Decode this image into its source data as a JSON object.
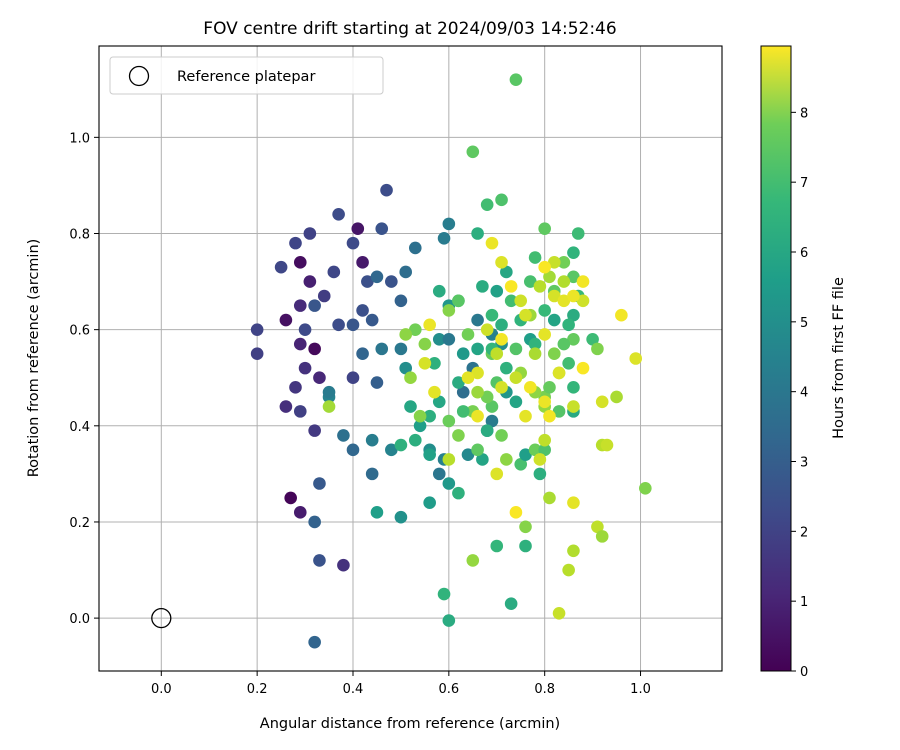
{
  "chart_data": {
    "type": "scatter",
    "title": "FOV centre drift starting at 2024/09/03 14:52:46",
    "xlabel": "Angular distance from reference (arcmin)",
    "ylabel": "Rotation from reference (arcmin)",
    "xlim": [
      -0.13,
      1.17
    ],
    "ylim": [
      -0.11,
      1.19
    ],
    "xticks": [
      "0.0",
      "0.2",
      "0.4",
      "0.6",
      "0.8",
      "1.0"
    ],
    "xtick_values": [
      0.0,
      0.2,
      0.4,
      0.6,
      0.8,
      1.0
    ],
    "yticks": [
      "0.0",
      "0.2",
      "0.4",
      "0.6",
      "0.8",
      "1.0"
    ],
    "ytick_values": [
      0.0,
      0.2,
      0.4,
      0.6,
      0.8,
      1.0
    ],
    "grid": true,
    "legend": {
      "position": "top-left",
      "label": "Reference platepar",
      "reference_point": [
        0.0,
        0.0
      ]
    },
    "colorbar": {
      "label": "Hours from first FF file",
      "range": [
        0,
        8.95
      ],
      "ticks": [
        "0",
        "1",
        "2",
        "3",
        "4",
        "5",
        "6",
        "7",
        "8"
      ],
      "tick_values": [
        0,
        1,
        2,
        3,
        4,
        5,
        6,
        7,
        8
      ],
      "colormap": "viridis"
    },
    "points": [
      [
        0.27,
        0.25,
        0.1
      ],
      [
        0.32,
        0.56,
        0.2
      ],
      [
        0.29,
        0.74,
        0.3
      ],
      [
        0.26,
        0.62,
        0.4
      ],
      [
        0.41,
        0.81,
        0.5
      ],
      [
        0.42,
        0.74,
        0.6
      ],
      [
        0.29,
        0.22,
        0.7
      ],
      [
        0.31,
        0.7,
        0.8
      ],
      [
        0.29,
        0.57,
        0.9
      ],
      [
        0.33,
        0.5,
        1.0
      ],
      [
        0.29,
        0.65,
        1.1
      ],
      [
        0.26,
        0.44,
        1.2
      ],
      [
        0.3,
        0.52,
        1.3
      ],
      [
        0.28,
        0.48,
        1.4
      ],
      [
        0.32,
        0.39,
        1.5
      ],
      [
        0.34,
        0.67,
        1.6
      ],
      [
        0.29,
        0.43,
        1.7
      ],
      [
        0.31,
        0.8,
        1.75
      ],
      [
        0.28,
        0.78,
        1.85
      ],
      [
        0.36,
        0.72,
        1.9
      ],
      [
        0.4,
        0.78,
        2.0
      ],
      [
        0.37,
        0.84,
        2.05
      ],
      [
        0.47,
        0.89,
        2.1
      ],
      [
        0.25,
        0.73,
        1.9
      ],
      [
        0.43,
        0.7,
        2.2
      ],
      [
        0.48,
        0.7,
        2.3
      ],
      [
        0.3,
        0.6,
        2.0
      ],
      [
        0.32,
        0.65,
        2.4
      ],
      [
        0.37,
        0.61,
        2.1
      ],
      [
        0.42,
        0.64,
        2.2
      ],
      [
        0.2,
        0.6,
        1.8
      ],
      [
        0.2,
        0.55,
        1.7
      ],
      [
        0.38,
        0.11,
        1.3
      ],
      [
        0.33,
        0.12,
        2.3
      ],
      [
        0.32,
        0.2,
        2.8
      ],
      [
        0.33,
        0.28,
        2.5
      ],
      [
        0.32,
        -0.05,
        2.9
      ],
      [
        0.46,
        0.81,
        2.3
      ],
      [
        0.4,
        0.5,
        1.8
      ],
      [
        0.44,
        0.62,
        2.5
      ],
      [
        0.45,
        0.71,
        3.0
      ],
      [
        0.51,
        0.72,
        3.2
      ],
      [
        0.53,
        0.77,
        3.3
      ],
      [
        0.5,
        0.66,
        2.8
      ],
      [
        0.46,
        0.56,
        3.5
      ],
      [
        0.42,
        0.55,
        2.9
      ],
      [
        0.38,
        0.38,
        3.3
      ],
      [
        0.4,
        0.35,
        3.0
      ],
      [
        0.44,
        0.3,
        3.1
      ],
      [
        0.44,
        0.37,
        3.8
      ],
      [
        0.48,
        0.35,
        4.0
      ],
      [
        0.45,
        0.49,
        2.7
      ],
      [
        0.4,
        0.61,
        2.4
      ],
      [
        0.5,
        0.56,
        3.6
      ],
      [
        0.56,
        0.35,
        4.4
      ],
      [
        0.58,
        0.3,
        3.5
      ],
      [
        0.6,
        0.28,
        4.8
      ],
      [
        0.56,
        0.24,
        4.9
      ],
      [
        0.59,
        0.33,
        3.9
      ],
      [
        0.64,
        0.34,
        4.2
      ],
      [
        0.69,
        0.41,
        3.7
      ],
      [
        0.68,
        0.39,
        4.3
      ],
      [
        0.63,
        0.47,
        3.2
      ],
      [
        0.65,
        0.52,
        3.4
      ],
      [
        0.69,
        0.59,
        3.9
      ],
      [
        0.66,
        0.62,
        3.6
      ],
      [
        0.71,
        0.57,
        4.4
      ],
      [
        0.66,
        0.56,
        5.2
      ],
      [
        0.6,
        0.82,
        3.8
      ],
      [
        0.59,
        0.79,
        3.7
      ],
      [
        0.6,
        0.65,
        4.7
      ],
      [
        0.58,
        0.68,
        5.5
      ],
      [
        0.63,
        0.55,
        4.8
      ],
      [
        0.62,
        0.49,
        5.5
      ],
      [
        0.58,
        0.58,
        4.4
      ],
      [
        0.57,
        0.53,
        5.7
      ],
      [
        0.58,
        0.45,
        5.3
      ],
      [
        0.56,
        0.42,
        5.6
      ],
      [
        0.54,
        0.4,
        5.0
      ],
      [
        0.52,
        0.44,
        5.3
      ],
      [
        0.53,
        0.37,
        5.6
      ],
      [
        0.5,
        0.36,
        5.7
      ],
      [
        0.56,
        0.34,
        5.1
      ],
      [
        0.51,
        0.52,
        4.4
      ],
      [
        0.5,
        0.21,
        4.5
      ],
      [
        0.45,
        0.22,
        5.0
      ],
      [
        0.59,
        0.05,
        5.8
      ],
      [
        0.6,
        -0.005,
        5.5
      ],
      [
        0.62,
        0.26,
        5.7
      ],
      [
        0.62,
        0.66,
        5.9
      ],
      [
        0.66,
        0.8,
        5.6
      ],
      [
        0.67,
        0.69,
        5.5
      ],
      [
        0.7,
        0.68,
        5.1
      ],
      [
        0.72,
        0.72,
        5.3
      ],
      [
        0.71,
        0.61,
        5.6
      ],
      [
        0.73,
        0.66,
        6.2
      ],
      [
        0.75,
        0.62,
        5.8
      ],
      [
        0.77,
        0.58,
        5.0
      ],
      [
        0.74,
        0.56,
        6.5
      ],
      [
        0.72,
        0.52,
        5.7
      ],
      [
        0.7,
        0.49,
        6.5
      ],
      [
        0.72,
        0.47,
        4.7
      ],
      [
        0.74,
        0.45,
        5.2
      ],
      [
        0.69,
        0.44,
        6.6
      ],
      [
        0.68,
        0.39,
        5.5
      ],
      [
        0.67,
        0.33,
        5.2
      ],
      [
        0.66,
        0.35,
        6.7
      ],
      [
        0.7,
        0.15,
        5.9
      ],
      [
        0.73,
        0.03,
        5.5
      ],
      [
        0.76,
        0.15,
        5.7
      ],
      [
        0.75,
        0.32,
        6.3
      ],
      [
        0.76,
        0.34,
        5.0
      ],
      [
        0.78,
        0.35,
        6.9
      ],
      [
        0.79,
        0.3,
        5.6
      ],
      [
        0.8,
        0.35,
        6.4
      ],
      [
        0.8,
        0.46,
        7.1
      ],
      [
        0.81,
        0.48,
        6.8
      ],
      [
        0.83,
        0.43,
        6.5
      ],
      [
        0.86,
        0.43,
        5.4
      ],
      [
        0.86,
        0.48,
        5.9
      ],
      [
        0.85,
        0.53,
        6.2
      ],
      [
        0.86,
        0.58,
        6.8
      ],
      [
        0.86,
        0.63,
        5.5
      ],
      [
        0.87,
        0.67,
        6.0
      ],
      [
        0.86,
        0.71,
        6.6
      ],
      [
        0.86,
        0.76,
        5.8
      ],
      [
        0.87,
        0.8,
        6.1
      ],
      [
        0.84,
        0.74,
        7.0
      ],
      [
        0.82,
        0.68,
        6.7
      ],
      [
        0.8,
        0.64,
        6.0
      ],
      [
        0.78,
        0.57,
        5.8
      ],
      [
        0.77,
        0.7,
        6.3
      ],
      [
        0.8,
        0.81,
        6.7
      ],
      [
        0.82,
        0.62,
        5.2
      ],
      [
        0.9,
        0.58,
        6.1
      ],
      [
        0.91,
        0.56,
        7.2
      ],
      [
        0.84,
        0.57,
        6.6
      ],
      [
        0.85,
        0.61,
        5.8
      ],
      [
        0.65,
        0.97,
        6.7
      ],
      [
        0.68,
        0.86,
        6.2
      ],
      [
        0.71,
        0.87,
        6.4
      ],
      [
        0.74,
        1.12,
        6.6
      ],
      [
        0.78,
        0.75,
        6.2
      ],
      [
        0.69,
        0.63,
        6.0
      ],
      [
        0.69,
        0.55,
        6.8
      ],
      [
        0.68,
        0.46,
        7.0
      ],
      [
        0.69,
        0.56,
        5.9
      ],
      [
        0.62,
        0.66,
        6.6
      ],
      [
        0.6,
        0.41,
        6.9
      ],
      [
        0.62,
        0.38,
        7.2
      ],
      [
        0.6,
        0.64,
        7.3
      ],
      [
        0.53,
        0.6,
        7.0
      ],
      [
        0.51,
        0.59,
        7.4
      ],
      [
        0.55,
        0.57,
        7.3
      ],
      [
        0.52,
        0.5,
        7.5
      ],
      [
        0.64,
        0.59,
        7.0
      ],
      [
        0.66,
        0.47,
        7.6
      ],
      [
        0.65,
        0.43,
        7.1
      ],
      [
        0.71,
        0.38,
        7.0
      ],
      [
        0.72,
        0.33,
        7.4
      ],
      [
        0.76,
        0.19,
        7.3
      ],
      [
        0.75,
        0.51,
        7.5
      ],
      [
        0.78,
        0.55,
        7.8
      ],
      [
        0.77,
        0.63,
        7.6
      ],
      [
        0.79,
        0.69,
        8.0
      ],
      [
        0.81,
        0.71,
        7.7
      ],
      [
        0.82,
        0.74,
        8.2
      ],
      [
        0.84,
        0.7,
        7.9
      ],
      [
        0.83,
        0.51,
        7.7
      ],
      [
        0.82,
        0.55,
        7.2
      ],
      [
        0.78,
        0.47,
        7.4
      ],
      [
        0.8,
        0.44,
        7.5
      ],
      [
        0.81,
        0.25,
        7.8
      ],
      [
        0.85,
        0.1,
        8.0
      ],
      [
        0.83,
        0.01,
        8.2
      ],
      [
        0.86,
        0.14,
        7.9
      ],
      [
        0.91,
        0.19,
        8.1
      ],
      [
        0.92,
        0.17,
        7.6
      ],
      [
        0.92,
        0.36,
        8.0
      ],
      [
        0.93,
        0.36,
        8.2
      ],
      [
        0.95,
        0.46,
        7.8
      ],
      [
        0.92,
        0.45,
        8.4
      ],
      [
        0.88,
        0.66,
        8.3
      ],
      [
        0.96,
        0.63,
        8.8
      ],
      [
        0.99,
        0.54,
        8.5
      ],
      [
        1.01,
        0.27,
        7.2
      ],
      [
        0.55,
        0.53,
        8.4
      ],
      [
        0.57,
        0.47,
        8.6
      ],
      [
        0.56,
        0.61,
        8.7
      ],
      [
        0.6,
        0.33,
        8.0
      ],
      [
        0.65,
        0.12,
        7.5
      ],
      [
        0.7,
        0.3,
        8.5
      ],
      [
        0.74,
        0.22,
        8.9
      ],
      [
        0.76,
        0.42,
        8.6
      ],
      [
        0.79,
        0.33,
        8.3
      ],
      [
        0.8,
        0.37,
        8.1
      ],
      [
        0.86,
        0.24,
        8.6
      ],
      [
        0.8,
        0.45,
        8.7
      ],
      [
        0.77,
        0.48,
        8.8
      ],
      [
        0.74,
        0.5,
        8.2
      ],
      [
        0.71,
        0.48,
        8.4
      ],
      [
        0.7,
        0.55,
        8.1
      ],
      [
        0.66,
        0.51,
        8.5
      ],
      [
        0.64,
        0.5,
        8.6
      ],
      [
        0.66,
        0.42,
        8.7
      ],
      [
        0.68,
        0.6,
        8.3
      ],
      [
        0.71,
        0.58,
        8.8
      ],
      [
        0.73,
        0.69,
        8.9
      ],
      [
        0.71,
        0.74,
        8.5
      ],
      [
        0.69,
        0.78,
        8.7
      ],
      [
        0.8,
        0.73,
        8.9
      ],
      [
        0.82,
        0.67,
        8.4
      ],
      [
        0.84,
        0.66,
        8.6
      ],
      [
        0.88,
        0.7,
        8.8
      ],
      [
        0.88,
        0.52,
        8.9
      ],
      [
        0.83,
        0.51,
        8.5
      ],
      [
        0.8,
        0.59,
        8.6
      ],
      [
        0.76,
        0.63,
        8.4
      ],
      [
        0.75,
        0.66,
        8.3
      ],
      [
        0.86,
        0.67,
        8.7
      ],
      [
        0.86,
        0.44,
        8.2
      ],
      [
        0.81,
        0.42,
        8.8
      ],
      [
        0.54,
        0.42,
        7.3
      ],
      [
        0.35,
        0.46,
        4.0
      ],
      [
        0.35,
        0.47,
        3.7
      ],
      [
        0.35,
        0.44,
        7.7
      ],
      [
        0.6,
        0.58,
        3.6
      ],
      [
        0.63,
        0.43,
        6.2
      ]
    ]
  }
}
